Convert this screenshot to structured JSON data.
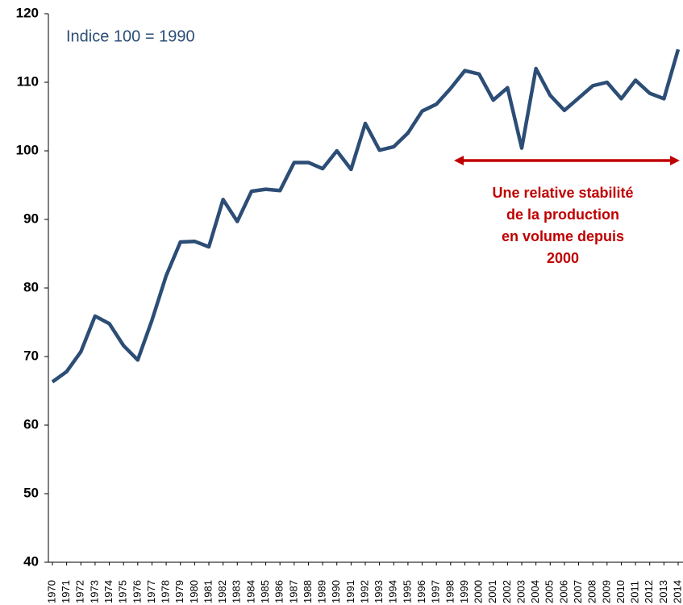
{
  "chart_data": {
    "type": "line",
    "subtitle": "Indice 100 = 1990",
    "annotation": [
      "Une relative stabilité",
      "de la production",
      "en volume depuis",
      "2000"
    ],
    "categories": [
      "1970",
      "1971",
      "1972",
      "1973",
      "1974",
      "1975",
      "1976",
      "1977",
      "1978",
      "1979",
      "1980",
      "1981",
      "1982",
      "1983",
      "1984",
      "1985",
      "1986",
      "1987",
      "1988",
      "1989",
      "1990",
      "1991",
      "1992",
      "1993",
      "1994",
      "1995",
      "1996",
      "1997",
      "1998",
      "1999",
      "2000",
      "2001",
      "2002",
      "2003",
      "2004",
      "2005",
      "2006",
      "2007",
      "2008",
      "2009",
      "2010",
      "2011",
      "2012",
      "2013",
      "2014"
    ],
    "series": [
      {
        "color": "#2c4d75",
        "values": [
          66.3,
          67.8,
          70.7,
          75.9,
          74.8,
          71.6,
          69.5,
          75.3,
          81.8,
          86.7,
          86.8,
          86.0,
          92.9,
          89.7,
          94.1,
          94.4,
          94.2,
          98.3,
          98.3,
          97.4,
          100,
          97.3,
          104,
          100.1,
          100.6,
          102.6,
          105.8,
          106.8,
          109.1,
          111.7,
          111.2,
          107.4,
          109.2,
          100.4,
          112,
          108.1,
          105.9,
          107.7,
          109.5,
          110,
          107.6,
          110.3,
          108.4,
          107.6,
          114.8
        ]
      }
    ],
    "ylim": [
      40,
      120
    ],
    "yticks": [
      40,
      50,
      60,
      70,
      80,
      90,
      100,
      110,
      120
    ],
    "annotation_color": "#c00000"
  }
}
